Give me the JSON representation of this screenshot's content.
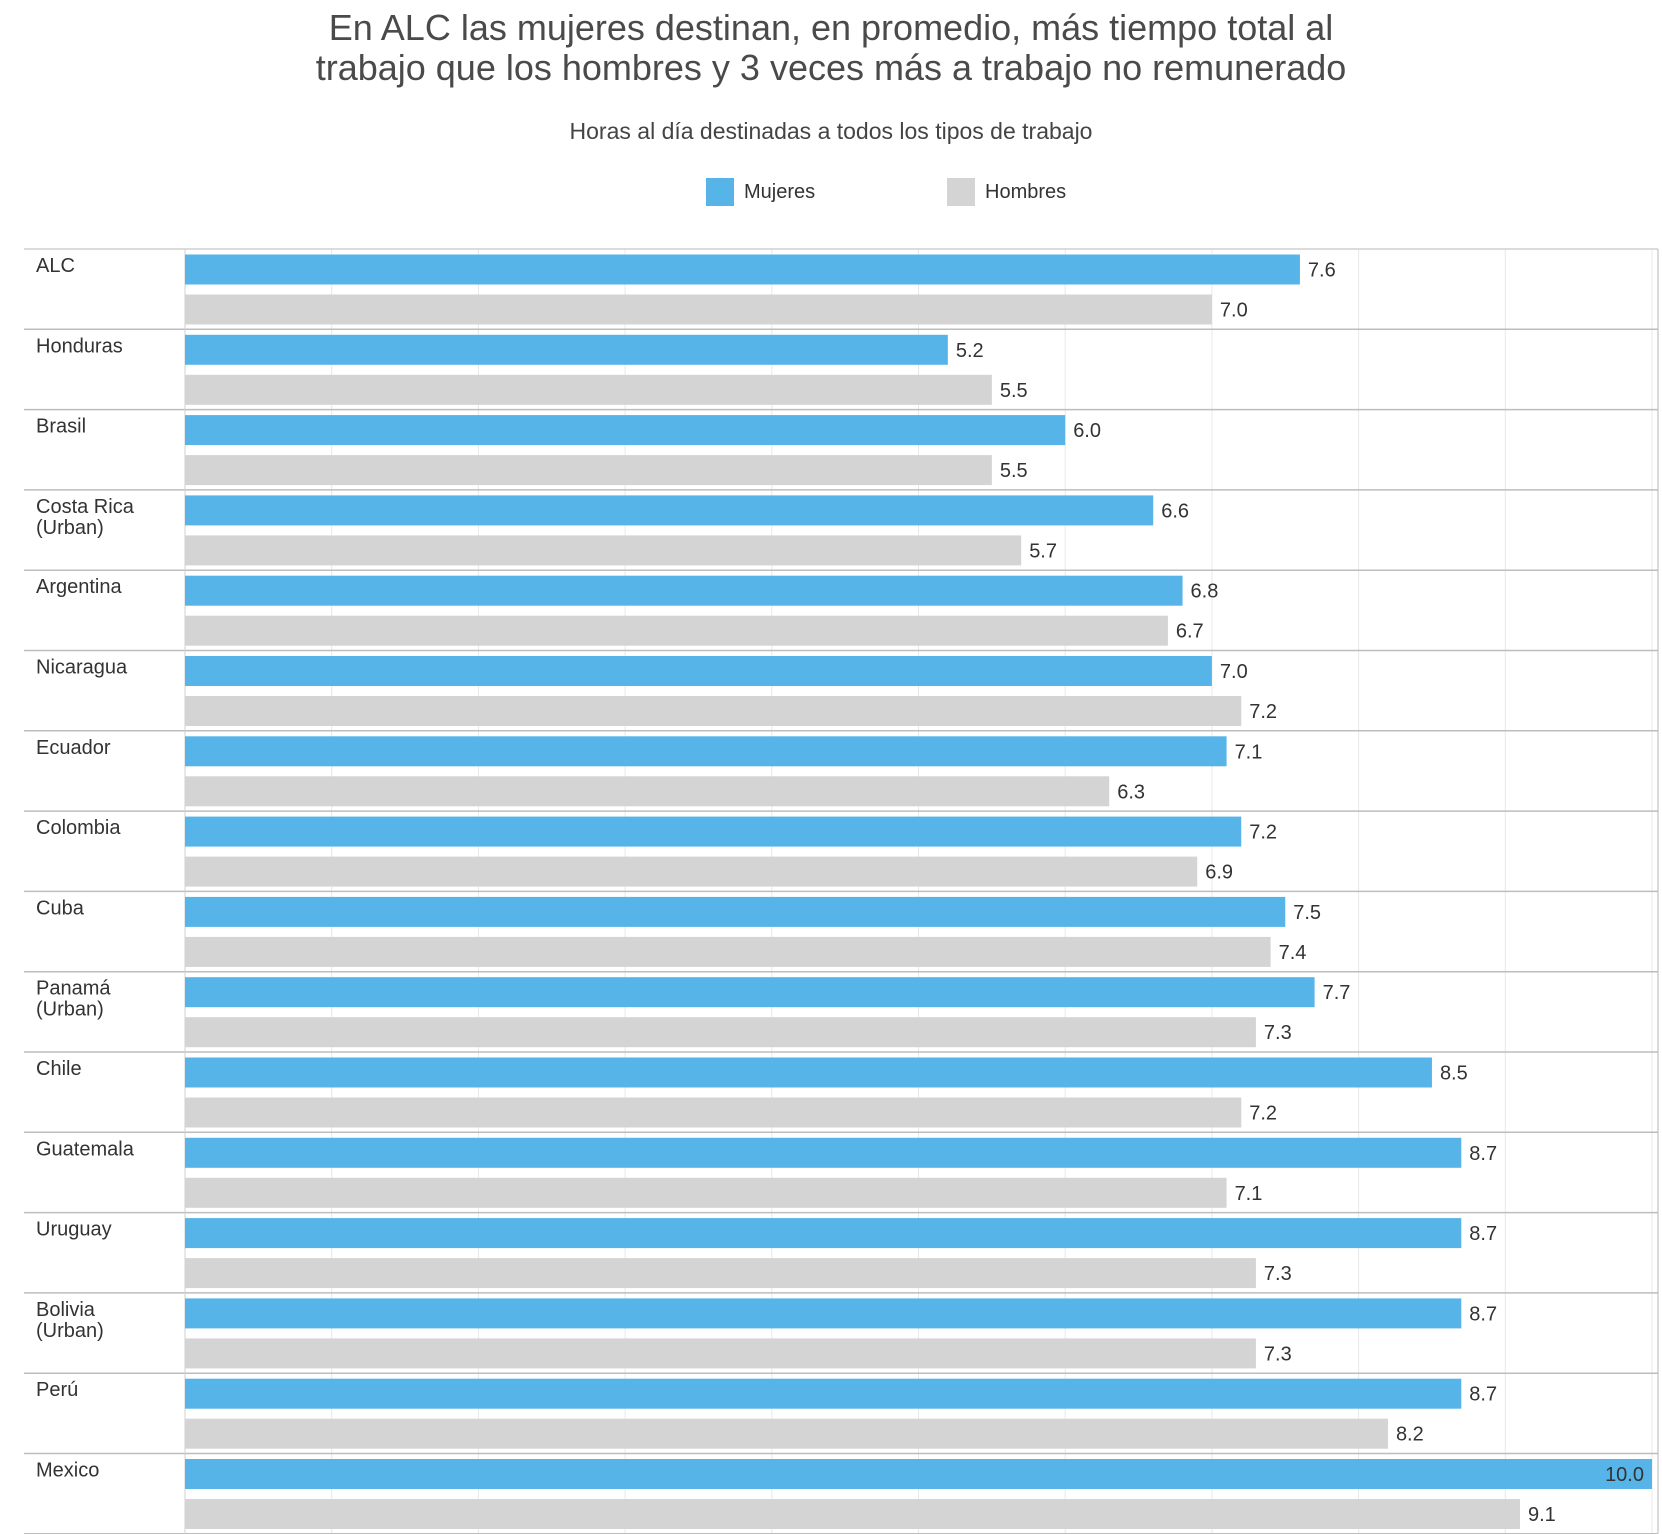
{
  "chart_data": {
    "type": "bar",
    "orientation": "horizontal",
    "title": "En ALC las mujeres destinan, en promedio, más tiempo total al trabajo que los hombres y 3 veces más a trabajo no remunerado",
    "title_lines": [
      "En ALC las mujeres destinan, en promedio, más tiempo total al",
      "trabajo que los hombres y 3 veces más a trabajo no remunerado"
    ],
    "subtitle": "Horas al día destinadas a todos los tipos de trabajo",
    "xlim": [
      0,
      10
    ],
    "grid": true,
    "legend_position": "top-center",
    "categories": [
      [
        "ALC"
      ],
      [
        "Honduras"
      ],
      [
        "Brasil"
      ],
      [
        "Costa Rica",
        "(Urban)"
      ],
      [
        "Argentina"
      ],
      [
        "Nicaragua"
      ],
      [
        "Ecuador"
      ],
      [
        "Colombia"
      ],
      [
        "Cuba"
      ],
      [
        "Panamá",
        "(Urban)"
      ],
      [
        "Chile"
      ],
      [
        "Guatemala"
      ],
      [
        "Uruguay"
      ],
      [
        "Bolivia",
        "(Urban)"
      ],
      [
        "Perú"
      ],
      [
        "Mexico"
      ]
    ],
    "series": [
      {
        "name": "Mujeres",
        "color": "#56b4e9",
        "values": [
          7.6,
          5.2,
          6.0,
          6.6,
          6.8,
          7.0,
          7.1,
          7.2,
          7.5,
          7.7,
          8.5,
          8.7,
          8.7,
          8.7,
          8.7,
          10.0
        ]
      },
      {
        "name": "Hombres",
        "color": "#d4d4d4",
        "values": [
          7.0,
          5.5,
          5.5,
          5.7,
          6.7,
          7.2,
          6.3,
          6.9,
          7.4,
          7.3,
          7.2,
          7.1,
          7.3,
          7.3,
          8.2,
          9.1
        ]
      }
    ]
  }
}
